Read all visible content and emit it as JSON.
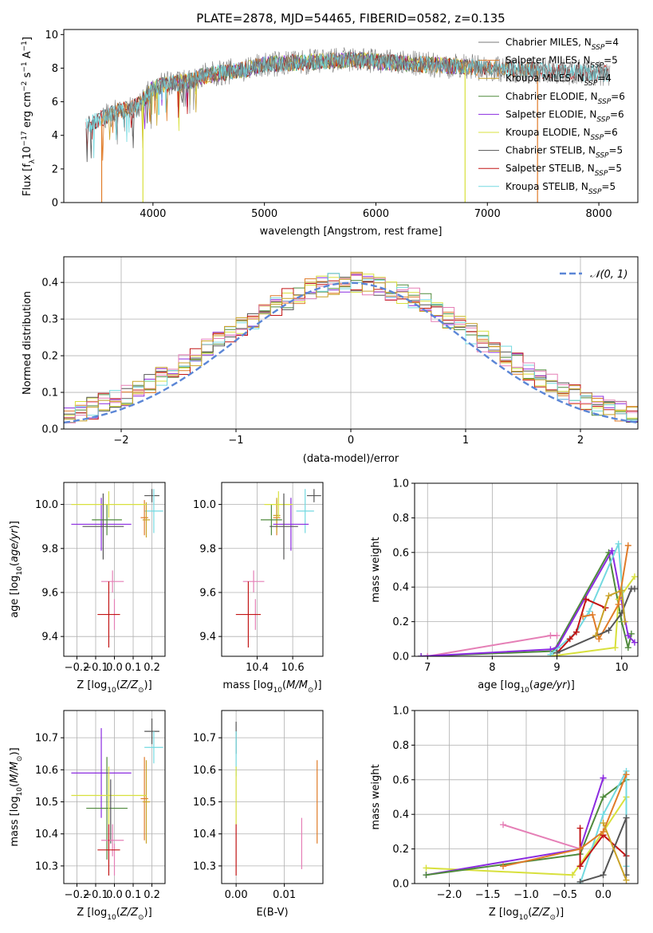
{
  "colors": {
    "chab_miles": "#7a7a7a",
    "salp_miles": "#e07b28",
    "krou_miles": "#c9a227",
    "chab_elodie": "#4f8a3c",
    "salp_elodie": "#8b2be0",
    "krou_elodie": "#d8e03c",
    "chab_stelib": "#555555",
    "salp_stelib": "#c21515",
    "krou_stelib": "#73d9e0",
    "pink": "#e57fb6",
    "gauss": "#5b86d6"
  },
  "chart_data": [
    {
      "id": "spectrum",
      "type": "line",
      "title": "PLATE=2878, MJD=54465, FIBERID=0582, z=0.135",
      "xlabel": "wavelength [Angstrom, rest frame]",
      "ylabel_parts": [
        "Flux [f",
        "λ",
        "10",
        "−17",
        " erg cm",
        "−2",
        " s",
        "−1",
        " A",
        "−1",
        "]"
      ],
      "xlim": [
        3200,
        8350
      ],
      "ylim": [
        0,
        10.3
      ],
      "xticks": [
        "4000",
        "5000",
        "6000",
        "7000",
        "8000"
      ],
      "yticks": [
        "0",
        "2",
        "4",
        "6",
        "8",
        "10"
      ],
      "grid": false,
      "legend_position": "right",
      "continuum": {
        "x": [
          3400,
          3600,
          3700,
          3800,
          3900,
          4000,
          4100,
          4300,
          4500,
          4800,
          5000,
          5200,
          5500,
          5800,
          6000,
          6200,
          6500,
          6800,
          7000,
          7300,
          7600,
          8000,
          8300
        ],
        "y": [
          4.6,
          5.2,
          5.5,
          5.6,
          6.0,
          6.8,
          7.0,
          7.2,
          7.6,
          7.9,
          8.2,
          8.3,
          8.4,
          8.5,
          8.4,
          8.3,
          8.2,
          8.1,
          8.0,
          7.9,
          7.8,
          7.7,
          7.6
        ]
      },
      "series": [
        {
          "name": "Chabrier MILES, N",
          "sub": "SSP",
          "suffix": "=4",
          "color_key": "chab_miles"
        },
        {
          "name": "Salpeter MILES, N",
          "sub": "SSP",
          "suffix": "=5",
          "color_key": "salp_miles"
        },
        {
          "name": "Kroupa MILES, N",
          "sub": "SSP",
          "suffix": "=4",
          "color_key": "krou_miles"
        },
        {
          "name": "Chabrier ELODIE, N",
          "sub": "SSP",
          "suffix": "=6",
          "color_key": "chab_elodie"
        },
        {
          "name": "Salpeter ELODIE, N",
          "sub": "SSP",
          "suffix": "=6",
          "color_key": "salp_elodie"
        },
        {
          "name": "Kroupa ELODIE, N",
          "sub": "SSP",
          "suffix": "=6",
          "color_key": "krou_elodie"
        },
        {
          "name": "Chabrier STELIB, N",
          "sub": "SSP",
          "suffix": "=5",
          "color_key": "chab_stelib"
        },
        {
          "name": "Salpeter STELIB, N",
          "sub": "SSP",
          "suffix": "=5",
          "color_key": "salp_stelib"
        },
        {
          "name": "Kroupa STELIB, N",
          "sub": "SSP",
          "suffix": "=5",
          "color_key": "krou_stelib"
        }
      ]
    },
    {
      "id": "residuals",
      "type": "line",
      "xlabel": "(data-model)/error",
      "ylabel": "Normed distribution",
      "xlim": [
        -2.5,
        2.5
      ],
      "ylim": [
        0,
        0.47
      ],
      "xticks": [
        -2,
        -1,
        0,
        1,
        2
      ],
      "yticks": [
        0.0,
        0.1,
        0.2,
        0.3,
        0.4
      ],
      "xtick_labels": [
        "−2",
        "−1",
        "0",
        "1",
        "2"
      ],
      "ytick_labels": [
        "0.0",
        "0.1",
        "0.2",
        "0.3",
        "0.4"
      ],
      "grid": true,
      "legend_position": "top-right",
      "gauss_label": "𝒩(0, 1)"
    },
    {
      "id": "age_vs_Z",
      "type": "scatter",
      "xlabel": "Z [log10(Z/Z⊙)]",
      "ylabel": "age  [log10(age/yr)]",
      "xlim": [
        -0.27,
        0.27
      ],
      "ylim": [
        9.31,
        10.1
      ],
      "xticks": [
        -0.2,
        -0.1,
        0.0,
        0.1,
        0.2
      ],
      "yticks": [
        9.4,
        9.6,
        9.8,
        10.0
      ],
      "xtick_labels": [
        "−0.2",
        "−0.1",
        "0.0",
        "0.1",
        "0.2"
      ],
      "ytick_labels": [
        "9.4",
        "9.6",
        "9.8",
        "10.0"
      ],
      "grid": true,
      "points": [
        {
          "color_key": "chab_stelib",
          "x": 0.2,
          "xerr": 0.04,
          "y": 10.04,
          "yerr": 0.03
        },
        {
          "color_key": "krou_stelib",
          "x": 0.21,
          "xerr": 0.05,
          "y": 9.97,
          "yerr": 0.1
        },
        {
          "color_key": "salp_miles",
          "x": 0.16,
          "xerr": 0.02,
          "y": 9.94,
          "yerr": 0.08
        },
        {
          "color_key": "krou_miles",
          "x": 0.17,
          "xerr": 0.02,
          "y": 9.93,
          "yerr": 0.08
        },
        {
          "color_key": "salp_elodie",
          "x": -0.07,
          "xerr": 0.16,
          "y": 9.91,
          "yerr": 0.12
        },
        {
          "color_key": "chab_elodie",
          "x": -0.04,
          "xerr": 0.08,
          "y": 9.93,
          "yerr": 0.07
        },
        {
          "color_key": "krou_elodie",
          "x": -0.03,
          "xerr": 0.2,
          "y": 10.0,
          "yerr": 0.06
        },
        {
          "color_key": "chab_stelib",
          "x": -0.06,
          "xerr": 0.11,
          "y": 9.9,
          "yerr": 0.15
        },
        {
          "color_key": "pink",
          "x": -0.01,
          "xerr": 0.06,
          "y": 9.65,
          "yerr": 0.05
        },
        {
          "color_key": "pink",
          "x": 0.0,
          "xerr": 0.0,
          "y": 9.5,
          "yerr": 0.07
        },
        {
          "color_key": "salp_stelib",
          "x": -0.03,
          "xerr": 0.06,
          "y": 9.5,
          "yerr": 0.15
        }
      ]
    },
    {
      "id": "age_vs_mass",
      "type": "scatter",
      "xlabel": "mass [log10(M/M⊙)]",
      "xlim": [
        10.2,
        10.77
      ],
      "ylim": [
        9.31,
        10.1
      ],
      "xticks": [
        10.4,
        10.6
      ],
      "yticks": [
        9.4,
        9.6,
        9.8,
        10.0
      ],
      "xtick_labels": [
        "10.4",
        "10.6"
      ],
      "ytick_labels": [
        "9.4",
        "9.6",
        "9.8",
        "10.0"
      ],
      "grid": true,
      "points": [
        {
          "color_key": "chab_stelib",
          "x": 10.72,
          "xerr": 0.04,
          "y": 10.04,
          "yerr": 0.03
        },
        {
          "color_key": "krou_stelib",
          "x": 10.67,
          "xerr": 0.05,
          "y": 9.97,
          "yerr": 0.1
        },
        {
          "color_key": "salp_miles",
          "x": 10.51,
          "xerr": 0.02,
          "y": 9.94,
          "yerr": 0.08
        },
        {
          "color_key": "krou_miles",
          "x": 10.51,
          "xerr": 0.02,
          "y": 9.95,
          "yerr": 0.08
        },
        {
          "color_key": "salp_elodie",
          "x": 10.59,
          "xerr": 0.1,
          "y": 9.91,
          "yerr": 0.12
        },
        {
          "color_key": "chab_elodie",
          "x": 10.48,
          "xerr": 0.06,
          "y": 9.93,
          "yerr": 0.07
        },
        {
          "color_key": "krou_elodie",
          "x": 10.52,
          "xerr": 0.08,
          "y": 10.0,
          "yerr": 0.06
        },
        {
          "color_key": "chab_stelib",
          "x": 10.55,
          "xerr": 0.08,
          "y": 9.9,
          "yerr": 0.15
        },
        {
          "color_key": "pink",
          "x": 10.38,
          "xerr": 0.06,
          "y": 9.65,
          "yerr": 0.05
        },
        {
          "color_key": "pink",
          "x": 10.39,
          "xerr": 0.0,
          "y": 9.5,
          "yerr": 0.07
        },
        {
          "color_key": "salp_stelib",
          "x": 10.35,
          "xerr": 0.07,
          "y": 9.5,
          "yerr": 0.15
        }
      ]
    },
    {
      "id": "weight_vs_age",
      "type": "line",
      "xlabel": "age  [log10(age/yr)]",
      "ylabel": "mass weight",
      "xlim": [
        6.8,
        10.25
      ],
      "ylim": [
        0,
        1.0
      ],
      "xticks": [
        7,
        8,
        9,
        10
      ],
      "yticks": [
        0.0,
        0.2,
        0.4,
        0.6,
        0.8,
        1.0
      ],
      "xtick_labels": [
        "7",
        "8",
        "9",
        "10"
      ],
      "ytick_labels": [
        "0.0",
        "0.2",
        "0.4",
        "0.6",
        "0.8",
        "1.0"
      ],
      "grid": true,
      "series": [
        {
          "color_key": "pink",
          "x": [
            7.0,
            8.9,
            9.0
          ],
          "y": [
            0.0,
            0.12,
            0.12
          ]
        },
        {
          "color_key": "chab_elodie",
          "x": [
            6.9,
            8.95,
            9.8,
            10.0,
            10.1,
            10.15
          ],
          "y": [
            0.0,
            0.03,
            0.6,
            0.2,
            0.05,
            0.13
          ]
        },
        {
          "color_key": "salp_elodie",
          "x": [
            6.9,
            8.9,
            9.0,
            9.85,
            10.1,
            10.2
          ],
          "y": [
            0.0,
            0.04,
            0.05,
            0.61,
            0.12,
            0.08
          ]
        },
        {
          "color_key": "krou_elodie",
          "x": [
            8.9,
            9.9,
            9.95,
            10.2
          ],
          "y": [
            0.0,
            0.05,
            0.33,
            0.46
          ]
        },
        {
          "color_key": "krou_stelib",
          "x": [
            8.9,
            9.3,
            9.5,
            9.95,
            10.05
          ],
          "y": [
            0.01,
            0.14,
            0.26,
            0.65,
            0.2
          ]
        },
        {
          "color_key": "salp_stelib",
          "x": [
            9.0,
            9.2,
            9.3,
            9.45,
            9.75
          ],
          "y": [
            0.02,
            0.1,
            0.14,
            0.33,
            0.28
          ]
        },
        {
          "color_key": "salp_miles",
          "x": [
            9.4,
            9.55,
            9.65,
            9.95,
            10.1
          ],
          "y": [
            0.23,
            0.24,
            0.1,
            0.3,
            0.64
          ]
        },
        {
          "color_key": "chab_stelib",
          "x": [
            9.0,
            9.8,
            10.0,
            10.15,
            10.2
          ],
          "y": [
            0.02,
            0.15,
            0.25,
            0.39,
            0.39
          ]
        },
        {
          "color_key": "krou_miles",
          "x": [
            9.6,
            9.8,
            10.0,
            10.05
          ],
          "y": [
            0.12,
            0.35,
            0.38,
            0.2
          ]
        }
      ]
    },
    {
      "id": "mass_vs_Z",
      "type": "scatter",
      "xlabel": "Z [log10(Z/Z⊙)]",
      "ylabel": "mass [log10(M/M⊙)]",
      "xlim": [
        -0.27,
        0.27
      ],
      "ylim": [
        10.245,
        10.785
      ],
      "xticks": [
        -0.2,
        -0.1,
        0.0,
        0.1,
        0.2
      ],
      "yticks": [
        10.3,
        10.4,
        10.5,
        10.6,
        10.7
      ],
      "xtick_labels": [
        "−0.2",
        "−0.1",
        "0.0",
        "0.1",
        "0.2"
      ],
      "ytick_labels": [
        "10.3",
        "10.4",
        "10.5",
        "10.6",
        "10.7"
      ],
      "grid": true,
      "points": [
        {
          "color_key": "chab_stelib",
          "x": 0.2,
          "xerr": 0.04,
          "y": 10.72,
          "yerr": 0.04
        },
        {
          "color_key": "krou_stelib",
          "x": 0.21,
          "xerr": 0.05,
          "y": 10.67,
          "yerr": 0.05
        },
        {
          "color_key": "salp_miles",
          "x": 0.16,
          "xerr": 0.02,
          "y": 10.51,
          "yerr": 0.13
        },
        {
          "color_key": "krou_miles",
          "x": 0.17,
          "xerr": 0.02,
          "y": 10.5,
          "yerr": 0.13
        },
        {
          "color_key": "salp_elodie",
          "x": -0.07,
          "xerr": 0.16,
          "y": 10.59,
          "yerr": 0.14
        },
        {
          "color_key": "chab_elodie",
          "x": -0.04,
          "xerr": 0.11,
          "y": 10.48,
          "yerr": 0.16
        },
        {
          "color_key": "krou_elodie",
          "x": -0.03,
          "xerr": 0.2,
          "y": 10.52,
          "yerr": 0.09
        },
        {
          "color_key": "chab_stelib",
          "x": -0.02,
          "xerr": 0.0,
          "y": 10.47,
          "yerr": 0.1
        },
        {
          "color_key": "pink",
          "x": -0.01,
          "xerr": 0.06,
          "y": 10.38,
          "yerr": 0.05
        },
        {
          "color_key": "pink",
          "x": 0.0,
          "xerr": 0.0,
          "y": 10.32,
          "yerr": 0.05
        },
        {
          "color_key": "salp_stelib",
          "x": -0.03,
          "xerr": 0.06,
          "y": 10.35,
          "yerr": 0.08
        }
      ]
    },
    {
      "id": "mass_vs_ebv",
      "type": "scatter",
      "xlabel": "E(B-V)",
      "xlim": [
        -0.003,
        0.018
      ],
      "ylim": [
        10.245,
        10.785
      ],
      "xticks": [
        0.0,
        0.01
      ],
      "yticks": [
        10.3,
        10.4,
        10.5,
        10.6,
        10.7
      ],
      "xtick_labels": [
        "0.00",
        "0.01"
      ],
      "ytick_labels": [
        "10.3",
        "10.4",
        "10.5",
        "10.6",
        "10.7"
      ],
      "grid": true,
      "points": [
        {
          "color_key": "chab_stelib",
          "x": 0.0,
          "y": 10.7,
          "yerr": 0.05
        },
        {
          "color_key": "krou_stelib",
          "x": 0.0,
          "y": 10.65,
          "yerr": 0.07
        },
        {
          "color_key": "krou_elodie",
          "x": 0.0,
          "y": 10.52,
          "yerr": 0.09
        },
        {
          "color_key": "salp_stelib",
          "x": 0.0,
          "y": 10.35,
          "yerr": 0.08
        },
        {
          "color_key": "salp_miles",
          "x": 0.0168,
          "y": 10.5,
          "yerr": 0.13
        },
        {
          "color_key": "pink",
          "x": 0.0136,
          "y": 10.37,
          "yerr": 0.08
        }
      ]
    },
    {
      "id": "weight_vs_Z",
      "type": "line",
      "xlabel": "Z [log10(Z/Z⊙)]",
      "ylabel": "mass weight",
      "xlim": [
        -2.45,
        0.45
      ],
      "ylim": [
        0,
        1.0
      ],
      "xticks": [
        -2.0,
        -1.5,
        -1.0,
        -0.5,
        0.0
      ],
      "yticks": [
        0.0,
        0.2,
        0.4,
        0.6,
        0.8,
        1.0
      ],
      "xtick_labels": [
        "−2.0",
        "−1.5",
        "−1.0",
        "−0.5",
        "0.0"
      ],
      "ytick_labels": [
        "0.0",
        "0.2",
        "0.4",
        "0.6",
        "0.8",
        "1.0"
      ],
      "grid": true,
      "series": [
        {
          "color_key": "pink",
          "x": [
            -1.3,
            -0.3,
            -0.3
          ],
          "y": [
            0.34,
            0.2,
            0.1
          ]
        },
        {
          "color_key": "krou_elodie",
          "x": [
            -2.3,
            -0.4,
            0.0,
            0.3
          ],
          "y": [
            0.09,
            0.05,
            0.3,
            0.5
          ]
        },
        {
          "color_key": "salp_elodie",
          "x": [
            -2.3,
            -0.3,
            0.0,
            0.0
          ],
          "y": [
            0.05,
            0.2,
            0.61,
            0.61
          ]
        },
        {
          "color_key": "chab_elodie",
          "x": [
            -2.3,
            -0.3,
            0.0,
            0.3
          ],
          "y": [
            0.05,
            0.17,
            0.5,
            0.6
          ]
        },
        {
          "color_key": "krou_stelib",
          "x": [
            -0.3,
            0.0,
            0.3,
            0.3
          ],
          "y": [
            0.0,
            0.4,
            0.65,
            0.1
          ]
        },
        {
          "color_key": "salp_stelib",
          "x": [
            -0.3,
            -0.3,
            0.0,
            0.3
          ],
          "y": [
            0.32,
            0.1,
            0.28,
            0.16
          ]
        },
        {
          "color_key": "salp_miles",
          "x": [
            -1.3,
            -0.3,
            0.0,
            0.3
          ],
          "y": [
            0.1,
            0.2,
            0.3,
            0.63
          ]
        },
        {
          "color_key": "chab_stelib",
          "x": [
            -0.3,
            0.0,
            0.3,
            0.3
          ],
          "y": [
            0.01,
            0.05,
            0.38,
            0.05
          ]
        },
        {
          "color_key": "krou_miles",
          "x": [
            0.0,
            0.3
          ],
          "y": [
            0.35,
            0.02
          ]
        }
      ]
    }
  ]
}
